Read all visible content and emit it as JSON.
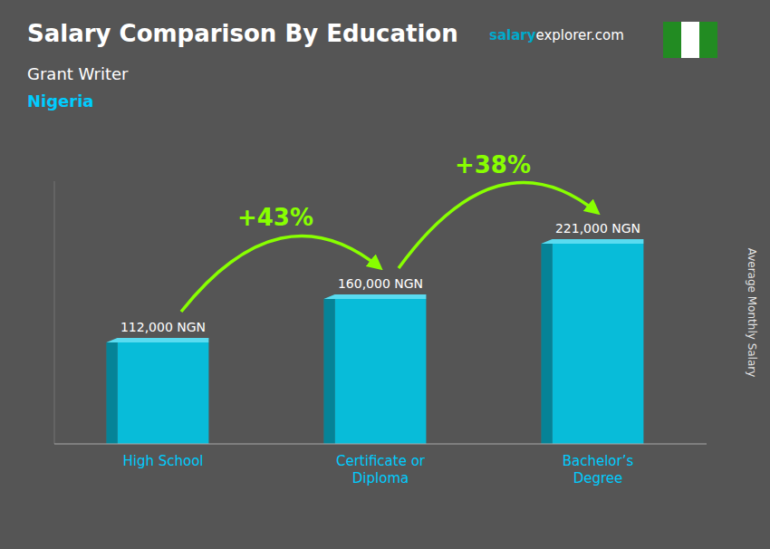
{
  "chart_data": {
    "type": "bar",
    "title": "Salary Comparison By Education",
    "subtitle": "Grant Writer",
    "country": "Nigeria",
    "site": [
      "salary",
      "explorer.com"
    ],
    "ylabel": "Average Monthly Salary",
    "categories": [
      "High School",
      "Certificate or\nDiploma",
      "Bachelor’s\nDegree"
    ],
    "values": [
      112000,
      160000,
      221000
    ],
    "value_labels": [
      "112,000 NGN",
      "160,000 NGN",
      "221,000 NGN"
    ],
    "change_labels": [
      "+43%",
      "+38%"
    ],
    "color": "#00c8e8",
    "arrow_color": "#88ff00",
    "title_color": "#ffffff",
    "country_color": "#00ccff",
    "tick_color": "#00ccff",
    "site_colors": [
      "#00aacc",
      "#ffffff"
    ],
    "background": "#555555",
    "flag_colors": [
      "#228b22",
      "#ffffff",
      "#228b22"
    ],
    "ylim": [
      0,
      290000
    ],
    "tick_labels": "x",
    "data_labels": true,
    "grid": false
  }
}
